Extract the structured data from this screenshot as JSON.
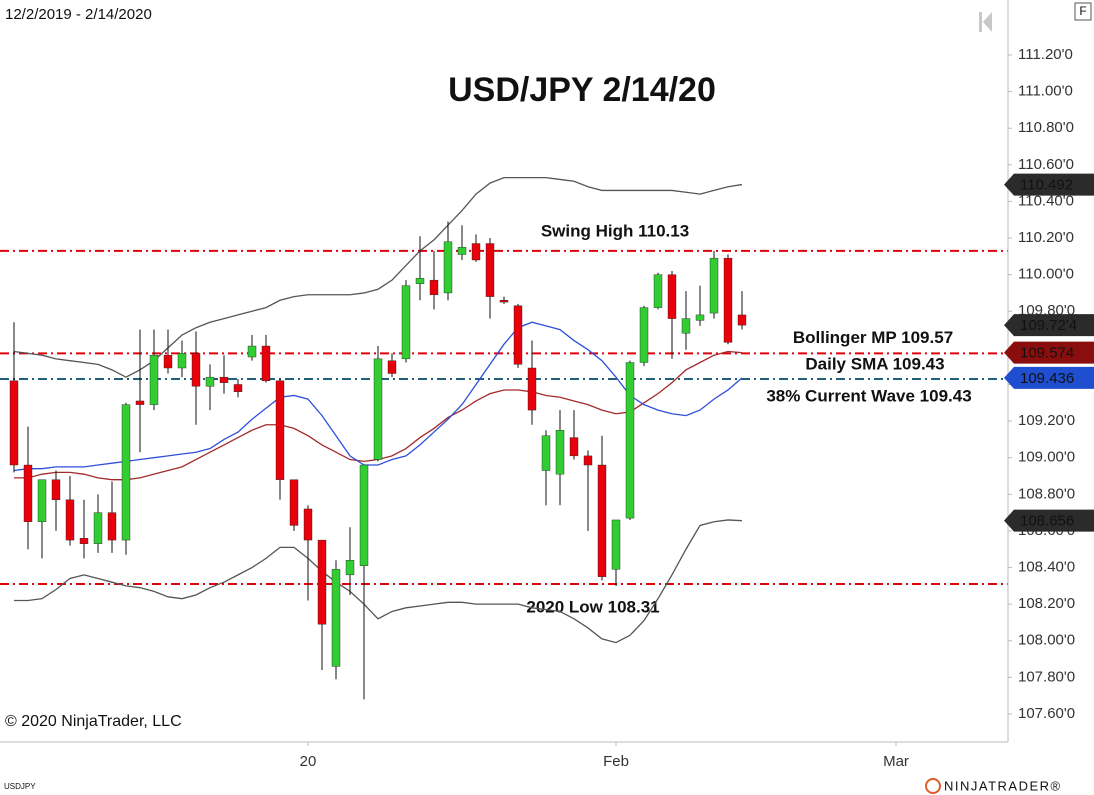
{
  "chart_data": {
    "type": "candlestick",
    "title": "USD/JPY 2/14/20",
    "date_range": "12/2/2019 - 2/14/2020",
    "copyright": "© 2020 NinjaTrader, LLC",
    "symbol": "USDJPY",
    "brand": "NINJATRADER®",
    "panel_button": "F",
    "up_color": "#32cd32",
    "down_color": "#e8000b",
    "categories": [
      null,
      null,
      null,
      null,
      null,
      null,
      null,
      null,
      null,
      null,
      null,
      null,
      null,
      null,
      null,
      null,
      null,
      null,
      null,
      null,
      null,
      "20",
      null,
      null,
      null,
      null,
      null,
      null,
      null,
      null,
      null,
      null,
      null,
      null,
      null,
      null,
      null,
      null,
      null,
      null,
      null,
      null,
      null,
      "Feb",
      null,
      null,
      null,
      null,
      null,
      null,
      null,
      null,
      null,
      null,
      null,
      null,
      null,
      null,
      null,
      null,
      null,
      null,
      null,
      "Mar",
      null,
      null,
      null,
      null,
      null,
      null,
      null
    ],
    "open": [
      109.42,
      108.96,
      108.65,
      108.88,
      108.77,
      108.56,
      108.53,
      108.7,
      108.55,
      109.31,
      109.29,
      109.56,
      109.49,
      109.57,
      109.39,
      109.44,
      109.4,
      109.55,
      109.61,
      109.42,
      108.88,
      108.72,
      108.55,
      107.86,
      108.36,
      108.41,
      108.99,
      109.53,
      109.54,
      109.95,
      109.97,
      109.9,
      110.11,
      110.17,
      110.17,
      109.86,
      109.83,
      109.49,
      108.93,
      108.91,
      109.11,
      109.01,
      108.96,
      108.39,
      108.67,
      109.52,
      109.82,
      110.0,
      109.68,
      109.75,
      109.79,
      110.09,
      109.78,
      null,
      null,
      null,
      null,
      null,
      null,
      null,
      null,
      null,
      null,
      null,
      null,
      null,
      null,
      null,
      null,
      null,
      null
    ],
    "high": [
      109.74,
      109.17,
      108.88,
      108.93,
      108.9,
      108.77,
      108.8,
      108.87,
      109.3,
      109.7,
      109.7,
      109.7,
      109.64,
      109.69,
      109.51,
      109.56,
      109.43,
      109.67,
      109.67,
      109.43,
      108.88,
      108.74,
      108.55,
      108.44,
      108.62,
      108.96,
      109.61,
      109.57,
      109.97,
      110.21,
      110.13,
      110.29,
      110.27,
      110.22,
      110.2,
      109.88,
      109.84,
      109.64,
      109.15,
      109.26,
      109.26,
      109.04,
      109.12,
      108.66,
      109.53,
      109.83,
      110.01,
      110.02,
      109.91,
      109.94,
      110.13,
      110.11,
      109.91,
      null,
      null,
      null,
      null,
      null,
      null,
      null,
      null,
      null,
      null,
      null,
      null,
      null,
      null,
      null,
      null,
      null,
      null
    ],
    "low": [
      108.92,
      108.5,
      108.45,
      108.6,
      108.52,
      108.45,
      108.48,
      108.48,
      108.47,
      109.03,
      109.26,
      109.46,
      109.44,
      109.18,
      109.26,
      109.35,
      109.33,
      109.53,
      109.41,
      108.77,
      108.6,
      108.22,
      107.84,
      107.79,
      108.25,
      107.68,
      108.98,
      109.44,
      109.52,
      109.86,
      109.81,
      109.86,
      110.08,
      110.07,
      109.76,
      109.84,
      109.49,
      109.18,
      108.74,
      108.74,
      108.99,
      108.6,
      108.33,
      108.3,
      108.66,
      109.5,
      109.81,
      109.54,
      109.59,
      109.72,
      109.76,
      109.62,
      109.7,
      null,
      null,
      null,
      null,
      null,
      null,
      null,
      null,
      null,
      null,
      null,
      null,
      null,
      null,
      null,
      null,
      null,
      null
    ],
    "close": [
      108.96,
      108.65,
      108.88,
      108.77,
      108.55,
      108.53,
      108.7,
      108.55,
      109.29,
      109.29,
      109.56,
      109.49,
      109.57,
      109.39,
      109.44,
      109.41,
      109.36,
      109.61,
      109.42,
      108.88,
      108.63,
      108.55,
      108.09,
      108.39,
      108.44,
      108.96,
      109.54,
      109.46,
      109.94,
      109.98,
      109.89,
      110.18,
      110.15,
      110.08,
      109.88,
      109.85,
      109.51,
      109.26,
      109.12,
      109.15,
      109.01,
      108.96,
      108.35,
      108.66,
      109.52,
      109.82,
      110.0,
      109.76,
      109.76,
      109.78,
      110.09,
      109.63,
      109.724,
      null,
      null,
      null,
      null,
      null,
      null,
      null,
      null,
      null,
      null,
      null,
      null,
      null,
      null,
      null,
      null,
      null,
      null
    ],
    "close_label": "109.72'4",
    "close_marker_color": "#2b2b2b",
    "lines": [
      {
        "color": "#555555",
        "marker_color": "#2b2b2b",
        "last_label": "110.492",
        "values": [
          109.58,
          109.57,
          109.56,
          109.54,
          109.53,
          109.52,
          109.51,
          109.48,
          109.44,
          109.48,
          109.53,
          109.6,
          109.67,
          109.71,
          109.74,
          109.76,
          109.78,
          109.8,
          109.82,
          109.86,
          109.88,
          109.89,
          109.89,
          109.89,
          109.89,
          109.9,
          109.92,
          109.97,
          110.05,
          110.13,
          110.19,
          110.27,
          110.35,
          110.44,
          110.5,
          110.53,
          110.53,
          110.53,
          110.53,
          110.52,
          110.51,
          110.48,
          110.46,
          110.46,
          110.46,
          110.46,
          110.46,
          110.46,
          110.45,
          110.44,
          110.46,
          110.48,
          110.492,
          null,
          null,
          null,
          null,
          null,
          null,
          null,
          null,
          null,
          null,
          null,
          null,
          null,
          null,
          null,
          null,
          null,
          null
        ]
      },
      {
        "color": "#555555",
        "marker_color": "#2b2b2b",
        "last_label": "108.656",
        "values": [
          108.22,
          108.22,
          108.23,
          108.28,
          108.34,
          108.36,
          108.34,
          108.32,
          108.3,
          108.29,
          108.27,
          108.24,
          108.23,
          108.25,
          108.29,
          108.32,
          108.36,
          108.4,
          108.45,
          108.51,
          108.51,
          108.45,
          108.38,
          108.32,
          108.27,
          108.2,
          108.12,
          108.16,
          108.18,
          108.19,
          108.2,
          108.21,
          108.21,
          108.2,
          108.2,
          108.2,
          108.2,
          108.18,
          108.17,
          108.16,
          108.12,
          108.07,
          108.01,
          107.99,
          108.03,
          108.11,
          108.23,
          108.36,
          108.5,
          108.63,
          108.65,
          108.66,
          108.656,
          null,
          null,
          null,
          null,
          null,
          null,
          null,
          null,
          null,
          null,
          null,
          null,
          null,
          null,
          null,
          null,
          null,
          null
        ]
      },
      {
        "color": "#a52a2a",
        "marker_color": "#8b0e0e",
        "last_label": "109.574",
        "values": [
          108.89,
          108.89,
          108.91,
          108.92,
          108.92,
          108.91,
          108.89,
          108.88,
          108.88,
          108.89,
          108.91,
          108.93,
          108.95,
          108.99,
          109.03,
          109.07,
          109.11,
          109.15,
          109.18,
          109.18,
          109.16,
          109.12,
          109.07,
          109.03,
          108.99,
          108.98,
          108.99,
          109.01,
          109.05,
          109.11,
          109.16,
          109.22,
          109.26,
          109.31,
          109.35,
          109.37,
          109.37,
          109.36,
          109.34,
          109.33,
          109.31,
          109.29,
          109.26,
          109.24,
          109.25,
          109.3,
          109.35,
          109.41,
          109.48,
          109.52,
          109.56,
          109.58,
          109.574,
          null,
          null,
          null,
          null,
          null,
          null,
          null,
          null,
          null,
          null,
          null,
          null,
          null,
          null,
          null,
          null,
          null,
          null
        ]
      },
      {
        "color": "#2f4fdc",
        "marker_color": "#1f4fd0",
        "last_label": "109.436",
        "values": [
          108.93,
          108.94,
          108.94,
          108.95,
          108.95,
          108.95,
          108.96,
          108.97,
          108.98,
          108.99,
          109.0,
          109.01,
          109.02,
          109.03,
          109.05,
          109.1,
          109.14,
          109.21,
          109.27,
          109.33,
          109.34,
          109.32,
          109.23,
          109.12,
          109.01,
          108.96,
          108.96,
          108.99,
          109.01,
          109.07,
          109.14,
          109.21,
          109.29,
          109.4,
          109.51,
          109.62,
          109.71,
          109.74,
          109.72,
          109.7,
          109.64,
          109.59,
          109.53,
          109.44,
          109.34,
          109.29,
          109.26,
          109.24,
          109.23,
          109.26,
          109.32,
          109.37,
          109.436,
          null,
          null,
          null,
          null,
          null,
          null,
          null,
          null,
          null,
          null,
          null,
          null,
          null,
          null,
          null,
          null,
          null,
          null
        ]
      }
    ],
    "levels": [
      {
        "value": 110.13,
        "label": "Swing High 110.13",
        "color": "#e0000b"
      },
      {
        "value": 109.57,
        "label": "Bollinger MP 109.57",
        "color": "#e0000b"
      },
      {
        "value": 109.43,
        "label": "Daily SMA 109.43",
        "color": "#1f5f7a"
      },
      {
        "value": 109.43,
        "label": "38% Current Wave 109.43",
        "color": "#1f5f7a"
      },
      {
        "value": 108.31,
        "label": "2020 Low 108.31",
        "color": "#e0000b"
      }
    ],
    "ylim": [
      107.447,
      111.391
    ],
    "yticks": [
      {
        "value": 107.6,
        "label": "107.60'0"
      },
      {
        "value": 107.8,
        "label": "107.80'0"
      },
      {
        "value": 108.0,
        "label": "108.00'0"
      },
      {
        "value": 108.2,
        "label": "108.20'0"
      },
      {
        "value": 108.4,
        "label": "108.40'0"
      },
      {
        "value": 108.6,
        "label": "108.60'0"
      },
      {
        "value": 108.8,
        "label": "108.80'0"
      },
      {
        "value": 109.0,
        "label": "109.00'0"
      },
      {
        "value": 109.2,
        "label": "109.20'0"
      },
      {
        "value": 109.4,
        "label": "109.40'0"
      },
      {
        "value": 109.6,
        "label": "109.60'0"
      },
      {
        "value": 109.8,
        "label": "109.80'0"
      },
      {
        "value": 110.0,
        "label": "110.00'0"
      },
      {
        "value": 110.2,
        "label": "110.20'0"
      },
      {
        "value": 110.4,
        "label": "110.40'0"
      },
      {
        "value": 110.6,
        "label": "110.60'0"
      },
      {
        "value": 110.8,
        "label": "110.80'0"
      },
      {
        "value": 111.0,
        "label": "111.00'0"
      },
      {
        "value": 111.2,
        "label": "111.20'0"
      }
    ]
  }
}
